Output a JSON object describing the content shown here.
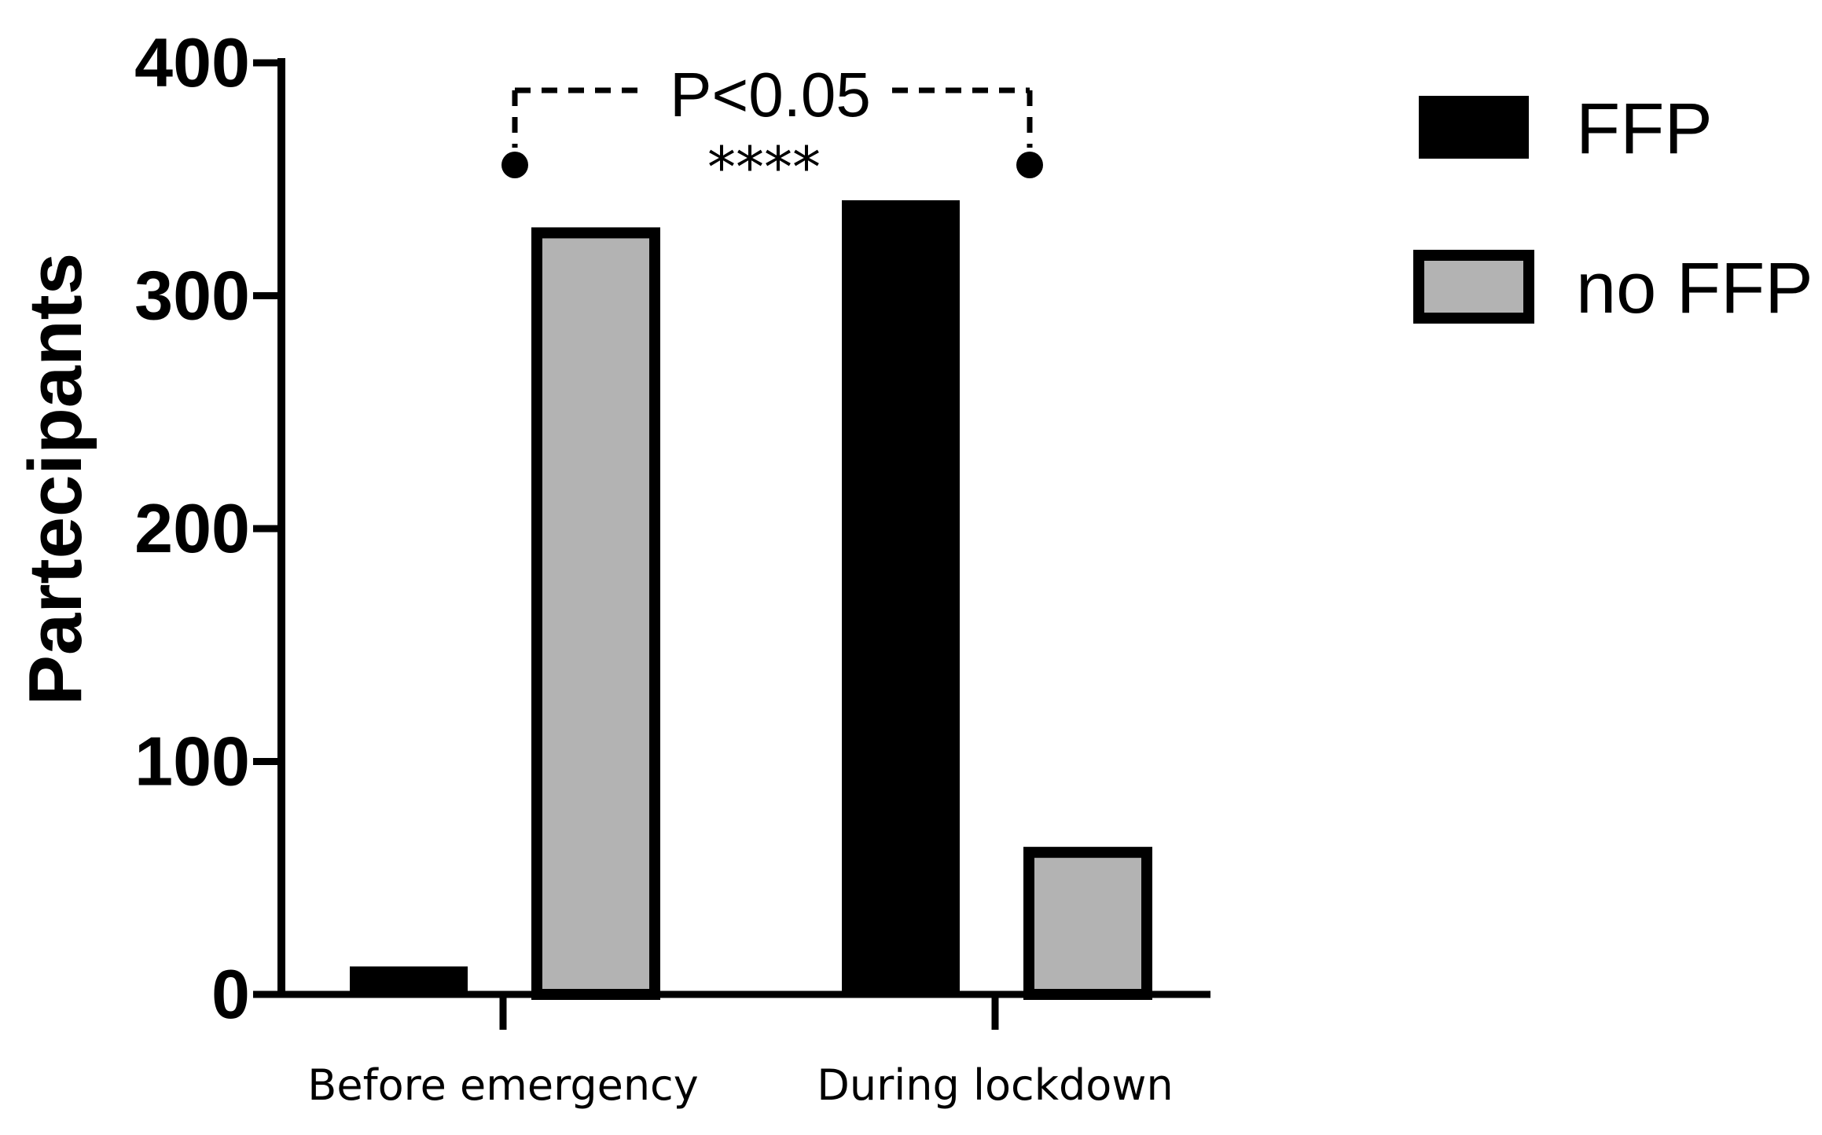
{
  "chart_data": {
    "type": "bar",
    "title": "",
    "xlabel": "",
    "ylabel": "Partecipants",
    "ylim": [
      0,
      400
    ],
    "yticks": [
      0,
      100,
      200,
      300,
      400
    ],
    "categories": [
      "Before emergency",
      "During lockdown"
    ],
    "series": [
      {
        "name": "FFP",
        "values": [
          12,
          341
        ],
        "color": "#000000"
      },
      {
        "name": "no FFP",
        "values": [
          327,
          61
        ],
        "color": "#b3b3b3"
      }
    ],
    "legend": {
      "position": "top-right"
    },
    "annotation": {
      "text": "P<0.05",
      "stars": "****",
      "between_series_index": [
        1,
        0
      ]
    },
    "grid": false
  }
}
